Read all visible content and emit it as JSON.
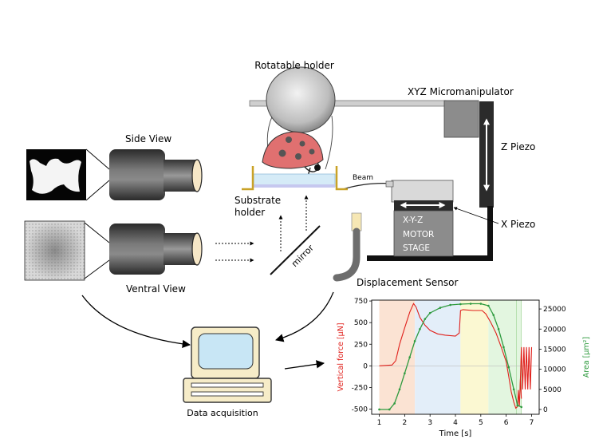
{
  "labels": {
    "rotatable_holder": "Rotatable holder",
    "xyz_micromanipulator": "XYZ Micromanipulator",
    "side_view": "Side View",
    "z_piezo": "Z Piezo",
    "beam": "Beam",
    "substrate_holder_line1": "Substrate",
    "substrate_holder_line2": "holder",
    "x_piezo": "X Piezo",
    "motor_stage_line1": "X-Y-Z",
    "motor_stage_line2": "MOTOR",
    "motor_stage_line3": "STAGE",
    "mirror": "mirror",
    "ventral_view": "Ventral View",
    "displacement_sensor": "Displacement Sensor",
    "data_acquisition": "Data acquisition"
  },
  "colors": {
    "force_series": "#e0201b",
    "area_series": "#2e9a3e",
    "holder_gold": "#c9a227",
    "body_pink": "#e07070",
    "phase_peach": "#fbe3d3",
    "phase_blue": "#e3eef9",
    "phase_yellow": "#fbf8d2",
    "phase_green": "#e3f6e0"
  },
  "chart_data": {
    "type": "line",
    "xlabel": "Time [s]",
    "ylabel_left": "Vertical force [μN]",
    "ylabel_right": "Area [μm²]",
    "xlim": [
      0.7,
      7.3
    ],
    "ylim_left": [
      -560,
      760
    ],
    "ylim_right": [
      -1200,
      27200
    ],
    "x_ticks": [
      1,
      2,
      3,
      4,
      5,
      6,
      7
    ],
    "y_ticks_left": [
      -500,
      -250,
      0,
      250,
      500,
      750
    ],
    "y_ticks_right": [
      0,
      5000,
      10000,
      15000,
      20000,
      25000
    ],
    "phases": [
      {
        "from": 1.0,
        "to": 2.4,
        "color": "#fbe3d3"
      },
      {
        "from": 2.4,
        "to": 4.2,
        "color": "#e3eef9"
      },
      {
        "from": 4.2,
        "to": 5.3,
        "color": "#fbf8d2"
      },
      {
        "from": 5.3,
        "to": 6.6,
        "color": "#e3f6e0"
      }
    ],
    "series": [
      {
        "axis": "left",
        "x": [
          1.0,
          1.5,
          1.65,
          1.8,
          2.0,
          2.2,
          2.35,
          2.45,
          2.6,
          2.8,
          3.0,
          3.3,
          3.6,
          4.0,
          4.15,
          4.2,
          4.3,
          4.7,
          5.05,
          5.2,
          5.4,
          5.6,
          5.8,
          6.0,
          6.1,
          6.2,
          6.3,
          6.38,
          6.45,
          6.48,
          6.52,
          6.56,
          6.6
        ],
        "y": [
          0,
          10,
          60,
          250,
          440,
          620,
          720,
          680,
          560,
          470,
          410,
          370,
          355,
          345,
          380,
          640,
          650,
          640,
          640,
          600,
          500,
          380,
          220,
          50,
          -120,
          -300,
          -420,
          -490,
          -470,
          -280,
          -460,
          -150,
          -380
        ]
      },
      {
        "axis": "right",
        "x": [
          1.0,
          1.4,
          1.6,
          1.8,
          2.0,
          2.2,
          2.4,
          2.6,
          2.8,
          3.0,
          3.4,
          3.8,
          4.2,
          4.6,
          5.0,
          5.3,
          5.5,
          5.7,
          5.9,
          6.1,
          6.3,
          6.45,
          6.6
        ],
        "y": [
          0,
          0,
          1500,
          5000,
          9000,
          13000,
          17000,
          20000,
          22500,
          24000,
          25300,
          26000,
          26200,
          26300,
          26300,
          25800,
          23500,
          20000,
          15500,
          10500,
          5000,
          1000,
          600
        ]
      },
      {
        "axis": "right",
        "x": [
          6.55,
          6.6,
          6.65,
          6.7,
          6.75,
          6.8,
          6.85,
          6.9,
          6.95,
          7.0
        ],
        "y": [
          5000,
          15500,
          5000,
          15500,
          5000,
          15500,
          5000,
          15500,
          5000,
          15500
        ]
      }
    ]
  }
}
